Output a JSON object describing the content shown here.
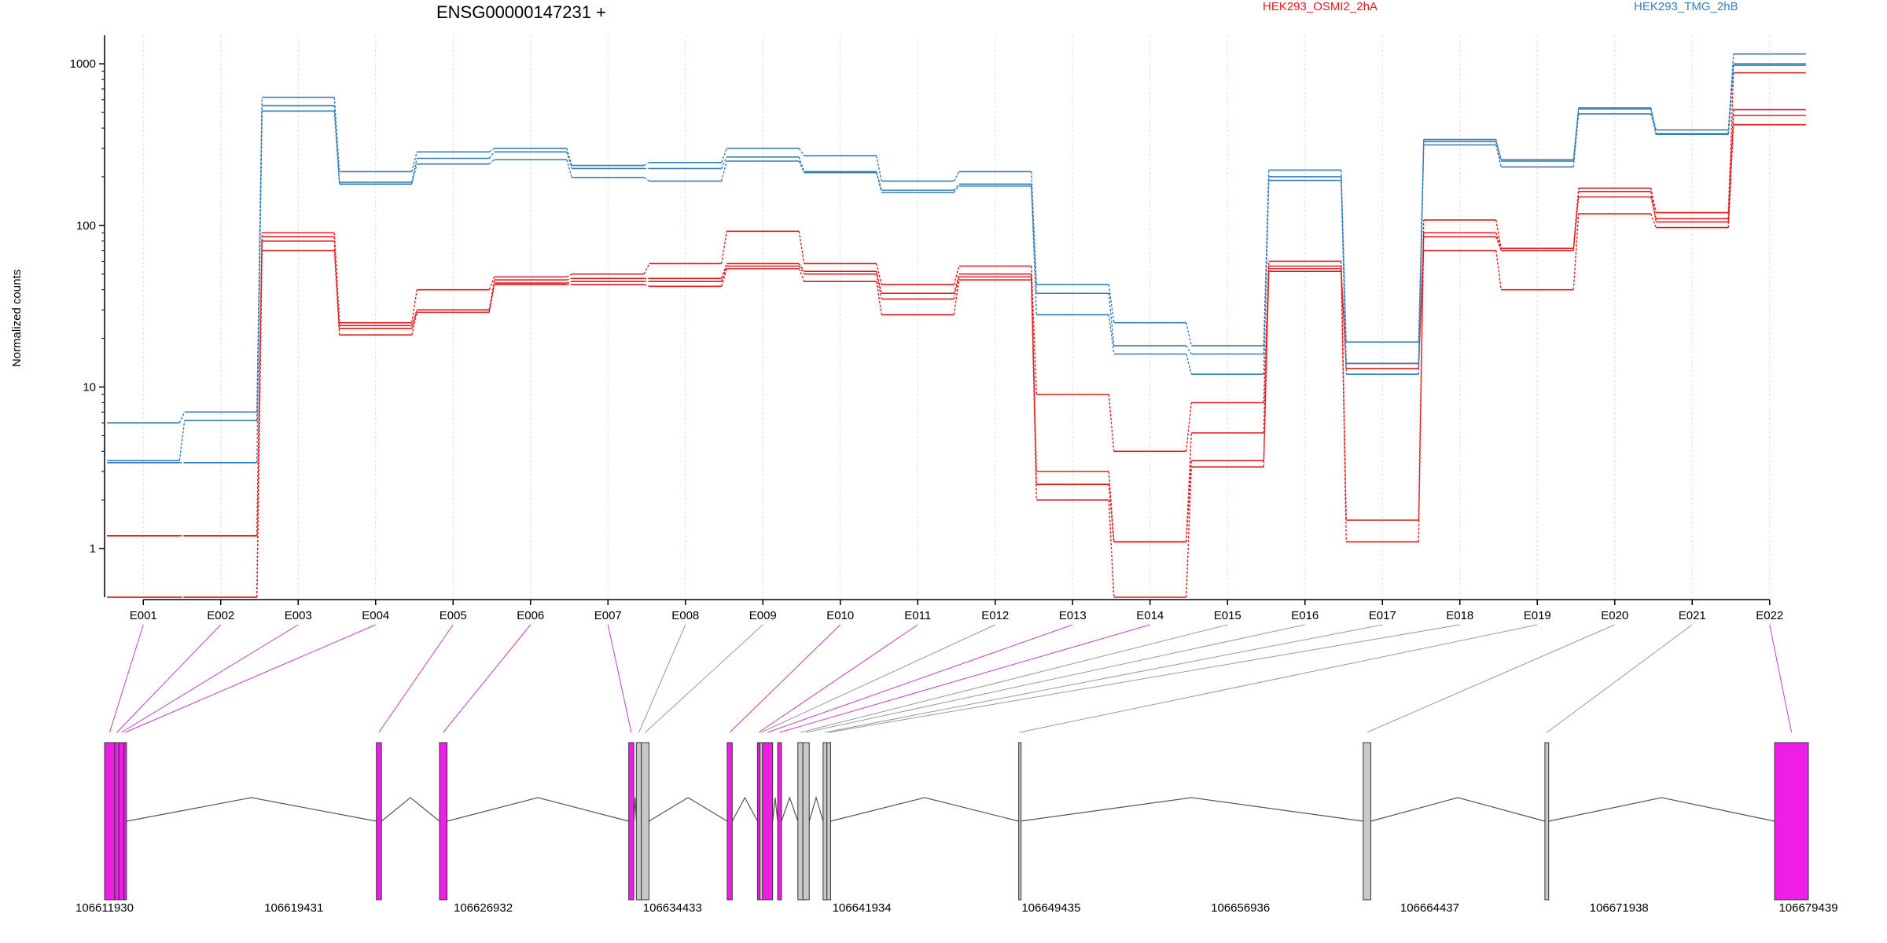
{
  "chart_data": {
    "type": "line",
    "title": "ENSG00000147231 +",
    "ylabel": "Normalized counts",
    "xlabel": "",
    "yscale": "log",
    "ylim": [
      0.5,
      1500
    ],
    "yticks": [
      "1",
      "10",
      "100",
      "1000"
    ],
    "grid": "vertical",
    "legend_position": "top",
    "colors": {
      "HEK293_OSMI2_2hA": "#e41a1c",
      "HEK293_TMG_2hB": "#377eb8"
    },
    "categories": [
      "E001",
      "E002",
      "E003",
      "E004",
      "E005",
      "E006",
      "E007",
      "E008",
      "E009",
      "E010",
      "E011",
      "E012",
      "E013",
      "E014",
      "E015",
      "E016",
      "E017",
      "E018",
      "E019",
      "E020",
      "E021",
      "E022"
    ],
    "series": [
      {
        "name": "HEK293_OSMI2_2hA",
        "group": "HEK293_OSMI2_2hA",
        "values": [
          1.2,
          1.2,
          90,
          25,
          40,
          48,
          50,
          58,
          92,
          58,
          43,
          56,
          9,
          4,
          8,
          60,
          1.5,
          108,
          72,
          170,
          120,
          880
        ]
      },
      {
        "group": "HEK293_OSMI2_2hA",
        "values": [
          0.5,
          0.5,
          80,
          23,
          30,
          46,
          47,
          47,
          58,
          52,
          38,
          50,
          3,
          1.1,
          5.2,
          56,
          1.1,
          90,
          72,
          162,
          105,
          520
        ]
      },
      {
        "group": "HEK293_OSMI2_2hA",
        "values": [
          0.5,
          0.5,
          70,
          21,
          29,
          43,
          43,
          42,
          54,
          45,
          28,
          46,
          2,
          0.5,
          3.2,
          52,
          14,
          70,
          40,
          118,
          97,
          420
        ]
      },
      {
        "group": "HEK293_OSMI2_2hA",
        "values": [
          1.2,
          1.2,
          85,
          24,
          30,
          44,
          45,
          45,
          56,
          50,
          35,
          48,
          2.5,
          1.1,
          3.5,
          54,
          13,
          85,
          70,
          150,
          110,
          480
        ]
      },
      {
        "name": "HEK293_TMG_2hB",
        "group": "HEK293_TMG_2hB",
        "values": [
          6,
          7,
          620,
          215,
          285,
          300,
          235,
          245,
          300,
          270,
          188,
          215,
          43,
          25,
          18,
          220,
          19,
          340,
          255,
          535,
          390,
          1150
        ]
      },
      {
        "group": "HEK293_TMG_2hB",
        "values": [
          3.5,
          6.2,
          550,
          185,
          260,
          285,
          225,
          225,
          265,
          215,
          165,
          180,
          38,
          18,
          16,
          200,
          14,
          330,
          250,
          525,
          370,
          1000
        ]
      },
      {
        "group": "HEK293_TMG_2hB",
        "values": [
          3.4,
          3.4,
          510,
          180,
          240,
          255,
          198,
          188,
          250,
          212,
          160,
          175,
          28,
          16,
          12,
          190,
          12,
          315,
          230,
          490,
          365,
          980
        ]
      }
    ],
    "gene_model": {
      "coordinate_ticks": [
        "106611930",
        "106619431",
        "106626932",
        "106634433",
        "106641934",
        "106649435",
        "106656936",
        "106664437",
        "106671938",
        "106679439"
      ],
      "features": [
        {
          "exon": "E001",
          "start": 106611930,
          "end": 106612330,
          "tested": true
        },
        {
          "exon": "E002",
          "start": 106612330,
          "end": 106612500,
          "tested": true
        },
        {
          "exon": "E003",
          "start": 106612500,
          "end": 106612700,
          "tested": true
        },
        {
          "exon": "E004",
          "start": 106612700,
          "end": 106612800,
          "tested": true
        },
        {
          "exon": "E005",
          "start": 106622700,
          "end": 106622900,
          "tested": true
        },
        {
          "exon": "E006",
          "start": 106625200,
          "end": 106625500,
          "tested": true
        },
        {
          "exon": "E007",
          "start": 106632700,
          "end": 106632900,
          "tested": true
        },
        {
          "exon": "E008",
          "start": 106633000,
          "end": 106633200,
          "tested": false
        },
        {
          "exon": "E009",
          "start": 106633200,
          "end": 106633500,
          "tested": false
        },
        {
          "exon": "E010",
          "start": 106636600,
          "end": 106636800,
          "tested": true
        },
        {
          "exon": "E011",
          "start": 106637800,
          "end": 106637900,
          "tested": true
        },
        {
          "exon": "E012",
          "start": 106637900,
          "end": 106638000,
          "tested": false
        },
        {
          "exon": "E013",
          "start": 106638000,
          "end": 106638400,
          "tested": true
        },
        {
          "exon": "E014",
          "start": 106638600,
          "end": 106638750,
          "tested": true
        },
        {
          "exon": "E015",
          "start": 106639400,
          "end": 106639600,
          "tested": false
        },
        {
          "exon": "E016",
          "start": 106639600,
          "end": 106639850,
          "tested": false
        },
        {
          "exon": "E017",
          "start": 106640400,
          "end": 106640550,
          "tested": false
        },
        {
          "exon": "E018",
          "start": 106640550,
          "end": 106640700,
          "tested": false
        },
        {
          "exon": "E019",
          "start": 106648150,
          "end": 106648200,
          "tested": false
        },
        {
          "exon": "E020",
          "start": 106661800,
          "end": 106662100,
          "tested": false
        },
        {
          "exon": "E021",
          "start": 106669000,
          "end": 106669150,
          "tested": false
        },
        {
          "exon": "E022",
          "start": 106678100,
          "end": 106679439,
          "tested": true
        }
      ]
    }
  },
  "colors": {
    "tested_exon": "#ee1ee6",
    "untested_exon": "#c8c8c8",
    "intron": "#555555",
    "grid": "#dddddd"
  }
}
